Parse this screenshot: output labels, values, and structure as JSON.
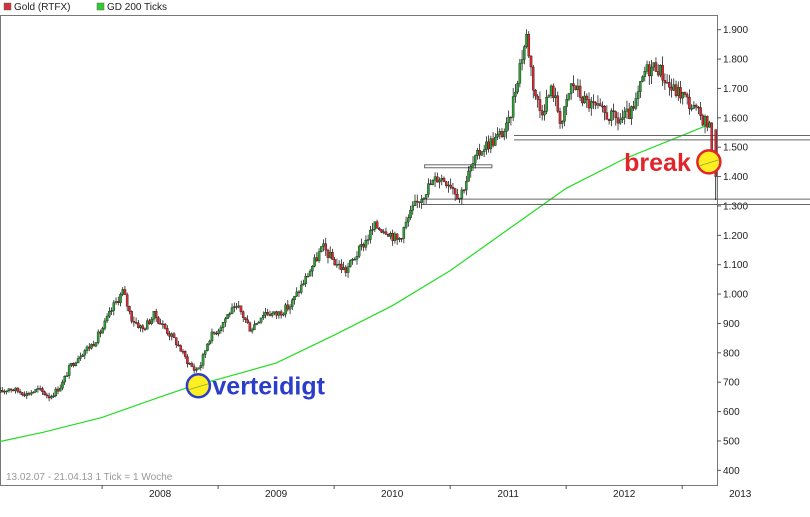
{
  "chart_data": {
    "type": "candlestick",
    "legend": [
      {
        "label": "Gold (RTFX)",
        "color": "#d0313a"
      },
      {
        "label": "GD 200 Ticks",
        "color": "#2ecc2e"
      }
    ],
    "info_text": "13.02.07 - 21.04.13   1 Tick = 1 Woche",
    "y_axis": {
      "ticks": [
        "400",
        "500",
        "600",
        "700",
        "800",
        "900",
        "1.000",
        "1.100",
        "1.200",
        "1.300",
        "1.400",
        "1.500",
        "1.600",
        "1.700",
        "1.800",
        "1.900"
      ],
      "tick_values": [
        400,
        500,
        600,
        700,
        800,
        900,
        1000,
        1100,
        1200,
        1300,
        1400,
        1500,
        1600,
        1700,
        1800,
        1900
      ],
      "range": [
        350,
        1950
      ]
    },
    "x_axis": {
      "ticks": [
        "2008",
        "2009",
        "2010",
        "2011",
        "2012",
        "2013"
      ],
      "tick_values": [
        2008,
        2009,
        2010,
        2011,
        2012,
        2013
      ],
      "range": [
        2007.12,
        2013.3
      ]
    },
    "series_colors": {
      "up": "#2f9c36",
      "down": "#d42b33",
      "wick": "#000000",
      "ma": "#22dd22"
    },
    "price_path": [
      [
        2007.12,
        665
      ],
      [
        2007.2,
        680
      ],
      [
        2007.35,
        660
      ],
      [
        2007.45,
        675
      ],
      [
        2007.55,
        650
      ],
      [
        2007.65,
        690
      ],
      [
        2007.72,
        750
      ],
      [
        2007.82,
        800
      ],
      [
        2007.92,
        830
      ],
      [
        2008.0,
        880
      ],
      [
        2008.1,
        960
      ],
      [
        2008.18,
        1010
      ],
      [
        2008.25,
        920
      ],
      [
        2008.35,
        880
      ],
      [
        2008.45,
        930
      ],
      [
        2008.55,
        880
      ],
      [
        2008.65,
        830
      ],
      [
        2008.72,
        780
      ],
      [
        2008.8,
        740
      ],
      [
        2008.85,
        760
      ],
      [
        2008.92,
        850
      ],
      [
        2009.0,
        880
      ],
      [
        2009.1,
        940
      ],
      [
        2009.18,
        950
      ],
      [
        2009.28,
        880
      ],
      [
        2009.4,
        940
      ],
      [
        2009.5,
        930
      ],
      [
        2009.62,
        960
      ],
      [
        2009.75,
        1050
      ],
      [
        2009.9,
        1160
      ],
      [
        2010.0,
        1110
      ],
      [
        2010.1,
        1080
      ],
      [
        2010.22,
        1150
      ],
      [
        2010.35,
        1230
      ],
      [
        2010.45,
        1220
      ],
      [
        2010.55,
        1180
      ],
      [
        2010.68,
        1290
      ],
      [
        2010.8,
        1360
      ],
      [
        2010.9,
        1400
      ],
      [
        2011.0,
        1380
      ],
      [
        2011.08,
        1330
      ],
      [
        2011.18,
        1430
      ],
      [
        2011.28,
        1500
      ],
      [
        2011.4,
        1530
      ],
      [
        2011.5,
        1570
      ],
      [
        2011.6,
        1780
      ],
      [
        2011.66,
        1880
      ],
      [
        2011.72,
        1700
      ],
      [
        2011.78,
        1620
      ],
      [
        2011.88,
        1700
      ],
      [
        2011.96,
        1580
      ],
      [
        2012.05,
        1720
      ],
      [
        2012.15,
        1660
      ],
      [
        2012.3,
        1620
      ],
      [
        2012.45,
        1590
      ],
      [
        2012.58,
        1620
      ],
      [
        2012.68,
        1760
      ],
      [
        2012.78,
        1780
      ],
      [
        2012.9,
        1700
      ],
      [
        2013.0,
        1680
      ],
      [
        2013.12,
        1620
      ],
      [
        2013.2,
        1590
      ],
      [
        2013.24,
        1560
      ],
      [
        2013.27,
        1400
      ]
    ],
    "ma_path": [
      [
        2007.12,
        498
      ],
      [
        2007.5,
        530
      ],
      [
        2008.0,
        580
      ],
      [
        2008.5,
        650
      ],
      [
        2008.8,
        690
      ],
      [
        2009.0,
        710
      ],
      [
        2009.5,
        765
      ],
      [
        2010.0,
        860
      ],
      [
        2010.5,
        960
      ],
      [
        2011.0,
        1080
      ],
      [
        2011.5,
        1220
      ],
      [
        2012.0,
        1360
      ],
      [
        2012.5,
        1460
      ],
      [
        2013.0,
        1540
      ],
      [
        2013.25,
        1580
      ]
    ],
    "support_lines": [
      {
        "y": 1540,
        "x_start": 2011.55
      },
      {
        "y": 1525,
        "x_start": 2011.55
      },
      {
        "y": 1323,
        "x_start": 2010.75
      },
      {
        "y": 1305,
        "x_start": 2010.75
      }
    ],
    "range_box": {
      "x_start": 2010.78,
      "x_end": 2011.36,
      "y_low": 1430,
      "y_high": 1440
    },
    "annotations": [
      {
        "text": "verteidigt",
        "x": 2008.83,
        "y": 688,
        "class": "ann-blue",
        "marker_stroke": "#2b3ec9"
      },
      {
        "text": "break",
        "x": 2013.23,
        "y": 1450,
        "class": "ann-red",
        "marker_stroke": "#e0262b"
      }
    ]
  }
}
